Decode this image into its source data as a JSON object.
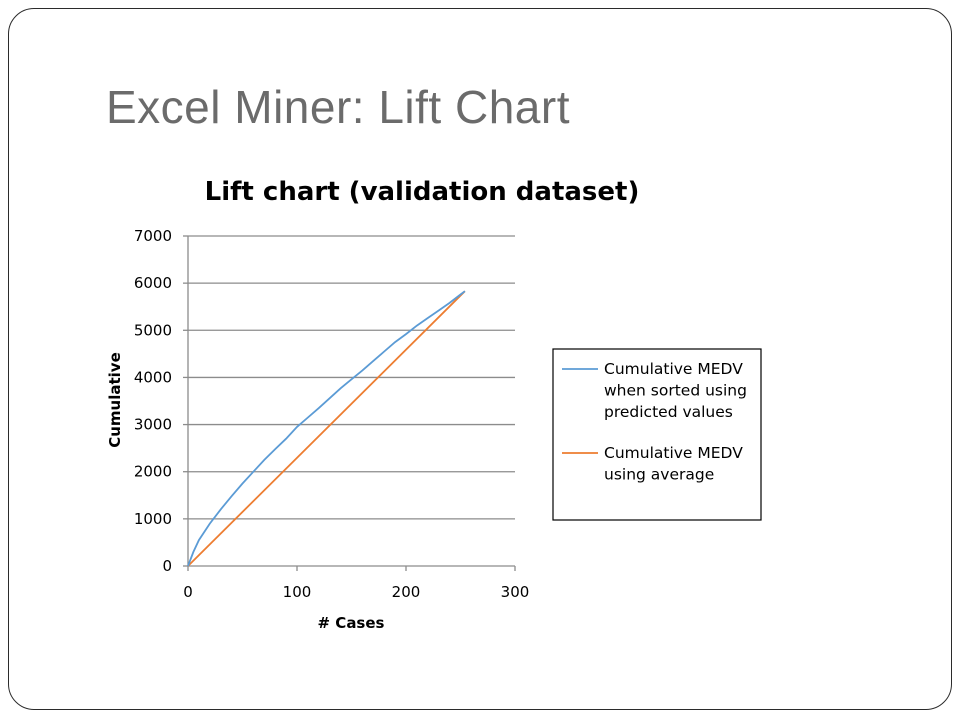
{
  "slide": {
    "title": "Excel Miner: Lift Chart"
  },
  "chart_data": {
    "type": "line",
    "title": "Lift chart (validation dataset)",
    "xlabel": "# Cases",
    "ylabel": "Cumulative",
    "xlim": [
      0,
      300
    ],
    "ylim": [
      0,
      7000
    ],
    "x_ticks": [
      0,
      100,
      200,
      300
    ],
    "y_ticks": [
      0,
      1000,
      2000,
      3000,
      4000,
      5000,
      6000,
      7000
    ],
    "grid": "horizontal",
    "legend_position": "right",
    "series": [
      {
        "name_lines": [
          "Cumulative MEDV",
          "when sorted using",
          "predicted values"
        ],
        "color": "#5b9bd5",
        "x": [
          0,
          5,
          10,
          20,
          30,
          40,
          50,
          60,
          70,
          80,
          90,
          100,
          110,
          120,
          130,
          140,
          150,
          160,
          170,
          180,
          190,
          200,
          210,
          220,
          230,
          240,
          250,
          254
        ],
        "y": [
          0,
          300,
          550,
          900,
          1200,
          1480,
          1750,
          2000,
          2250,
          2480,
          2700,
          2950,
          3150,
          3350,
          3560,
          3770,
          3960,
          4150,
          4350,
          4550,
          4750,
          4920,
          5100,
          5260,
          5420,
          5580,
          5760,
          5830
        ]
      },
      {
        "name_lines": [
          "Cumulative MEDV",
          "using average"
        ],
        "color": "#ed7d31",
        "x": [
          0,
          254
        ],
        "y": [
          0,
          5830
        ]
      }
    ]
  }
}
